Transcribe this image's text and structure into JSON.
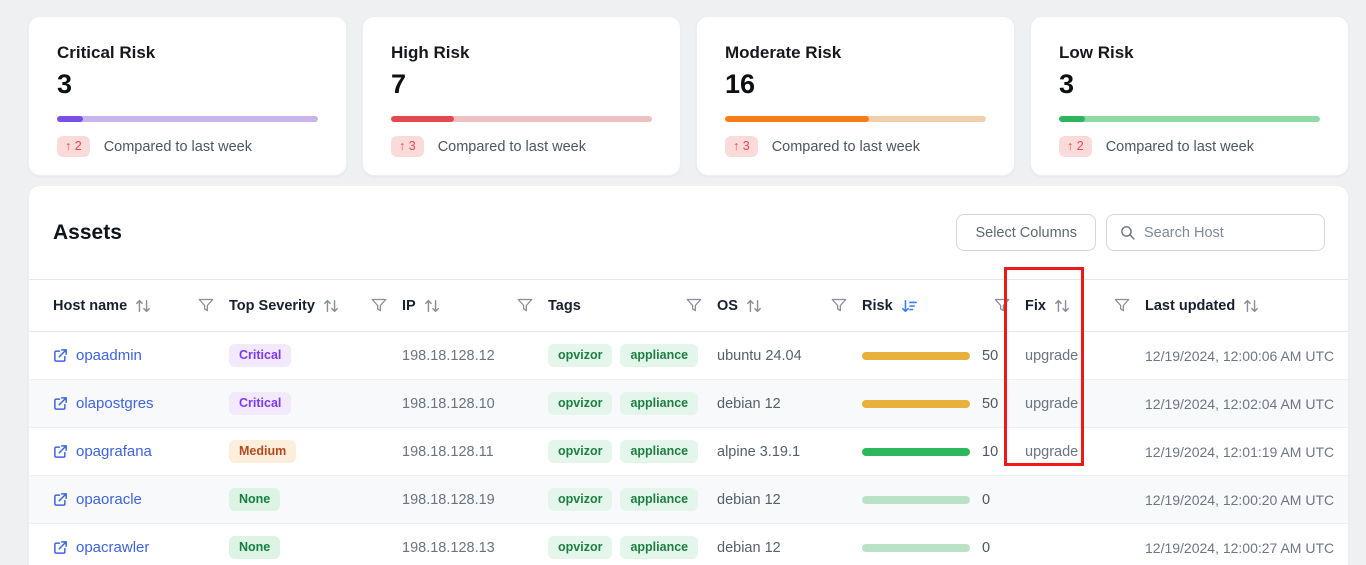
{
  "summary_cards": [
    {
      "title": "Critical Risk",
      "value": "3",
      "delta": "↑ 2",
      "compare_label": "Compared to last week",
      "bar_color": "#7a4ee8",
      "track_color": "#c9b4ee",
      "bar_percent": 10
    },
    {
      "title": "High Risk",
      "value": "7",
      "delta": "↑ 3",
      "compare_label": "Compared to last week",
      "bar_color": "#e5484d",
      "track_color": "#efc0c2",
      "bar_percent": 24
    },
    {
      "title": "Moderate Risk",
      "value": "16",
      "delta": "↑ 3",
      "compare_label": "Compared to last week",
      "bar_color": "#f97d16",
      "track_color": "#f1cfab",
      "bar_percent": 55
    },
    {
      "title": "Low Risk",
      "value": "3",
      "delta": "↑ 2",
      "compare_label": "Compared to last week",
      "bar_color": "#2db55d",
      "track_color": "#90d9a4",
      "bar_percent": 10
    }
  ],
  "assets": {
    "title": "Assets",
    "select_columns_label": "Select Columns",
    "search_placeholder": "Search Host",
    "columns": [
      {
        "label": "Host name",
        "sort": "default",
        "filter": true
      },
      {
        "label": "Top Severity",
        "sort": "default",
        "filter": true
      },
      {
        "label": "IP",
        "sort": "default",
        "filter": true
      },
      {
        "label": "Tags",
        "sort": "none",
        "filter": true
      },
      {
        "label": "OS",
        "sort": "default",
        "filter": true
      },
      {
        "label": "Risk",
        "sort": "desc",
        "filter": true
      },
      {
        "label": "Fix",
        "sort": "default",
        "filter": true
      },
      {
        "label": "Last updated",
        "sort": "default",
        "filter": false
      }
    ],
    "rows": [
      {
        "host": "opaadmin",
        "severity": "Critical",
        "ip": "198.18.128.12",
        "tags": [
          "opvizor",
          "appliance"
        ],
        "os": "ubuntu 24.04",
        "risk": 50,
        "risk_color": "#e7b13c",
        "fix": "upgrade",
        "last_updated": "12/19/2024, 12:00:06 AM UTC"
      },
      {
        "host": "olapostgres",
        "severity": "Critical",
        "ip": "198.18.128.10",
        "tags": [
          "opvizor",
          "appliance"
        ],
        "os": "debian 12",
        "risk": 50,
        "risk_color": "#e7b13c",
        "fix": "upgrade",
        "last_updated": "12/19/2024, 12:02:04 AM UTC"
      },
      {
        "host": "opagrafana",
        "severity": "Medium",
        "ip": "198.18.128.11",
        "tags": [
          "opvizor",
          "appliance"
        ],
        "os": "alpine 3.19.1",
        "risk": 10,
        "risk_color": "#2eb85c",
        "fix": "upgrade",
        "last_updated": "12/19/2024, 12:01:19 AM UTC"
      },
      {
        "host": "opaoracle",
        "severity": "None",
        "ip": "198.18.128.19",
        "tags": [
          "opvizor",
          "appliance"
        ],
        "os": "debian 12",
        "risk": 0,
        "risk_color": "#b9e2c6",
        "fix": "",
        "last_updated": "12/19/2024, 12:00:20 AM UTC"
      },
      {
        "host": "opacrawler",
        "severity": "None",
        "ip": "198.18.128.13",
        "tags": [
          "opvizor",
          "appliance"
        ],
        "os": "debian 12",
        "risk": 0,
        "risk_color": "#b9e2c6",
        "fix": "",
        "last_updated": "12/19/2024, 12:00:27 AM UTC"
      }
    ]
  },
  "annotation": {
    "target": "Fix column",
    "color": "#ee1a1a"
  },
  "colors": {
    "page_background": "#eef0f2",
    "severity_critical": {
      "text": "#7c3aed",
      "bg": "#f3e9fc"
    },
    "severity_medium": {
      "text": "#b4491f",
      "bg": "#fdeedc"
    },
    "severity_none": {
      "text": "#15803d",
      "bg": "#ddf3e4"
    },
    "tag": {
      "text": "#1e7e41",
      "bg": "#e4f6eb"
    },
    "link": "#3e63dd",
    "active_sort": "#3b82f6",
    "delta_badge": {
      "text": "#e5484d",
      "bg": "#fbdada"
    }
  }
}
